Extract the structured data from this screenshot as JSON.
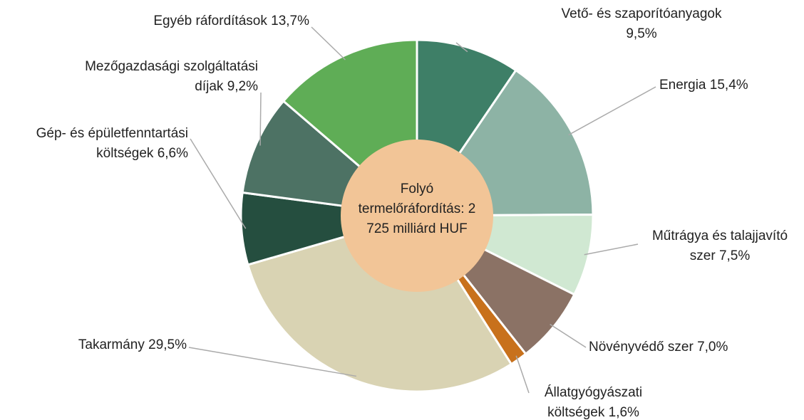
{
  "chart_data": {
    "type": "donut",
    "center_label": "Folyó termelőráfordítás: 2 725 milliárd HUF",
    "center_color": "#f2c597",
    "categories": [
      "Vető- és szaporítóanyagok",
      "Energia",
      "Műtrágya és talajjavító szer",
      "Növényvédő szer",
      "Állatgyógyászati költségek",
      "Takarmány",
      "Gép- és épületfenntartási költségek",
      "Mezőgazdasági szolgáltatási díjak",
      "Egyéb ráfordítások"
    ],
    "values": [
      9.5,
      15.4,
      7.5,
      7.0,
      1.6,
      29.5,
      6.6,
      9.2,
      13.7
    ],
    "value_labels": [
      "9,5%",
      "15,4%",
      "7,5%",
      "7,0%",
      "1,6%",
      "29,5%",
      "6,6%",
      "9,2%",
      "13,7%"
    ],
    "colors": [
      "#3e7f67",
      "#8db3a5",
      "#d0e8d2",
      "#8b7265",
      "#c8711c",
      "#d9d3b3",
      "#254e3f",
      "#4d7264",
      "#5fad56"
    ]
  }
}
